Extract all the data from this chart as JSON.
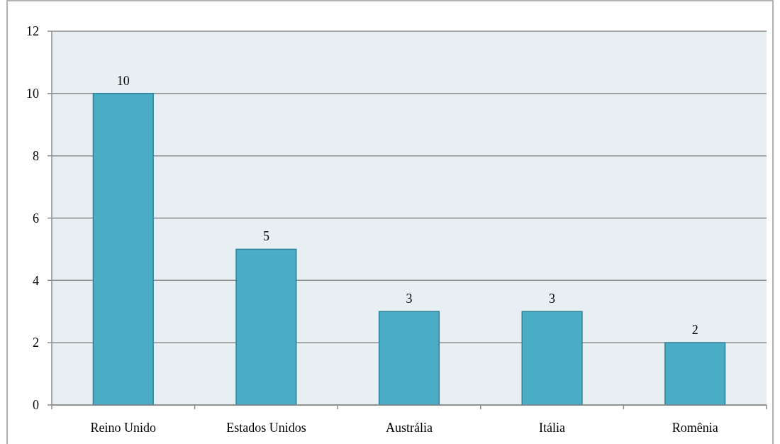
{
  "chart_data": {
    "type": "bar",
    "categories": [
      "Reino Unido",
      "Estados Unidos",
      "Austrália",
      "Itália",
      "Romênia"
    ],
    "values": [
      10,
      5,
      3,
      3,
      2
    ],
    "color": "#4bacc6",
    "ylim": [
      0,
      12
    ],
    "yticks": [
      0,
      2,
      4,
      6,
      8,
      10,
      12
    ],
    "grid": "y",
    "data_labels": true
  }
}
